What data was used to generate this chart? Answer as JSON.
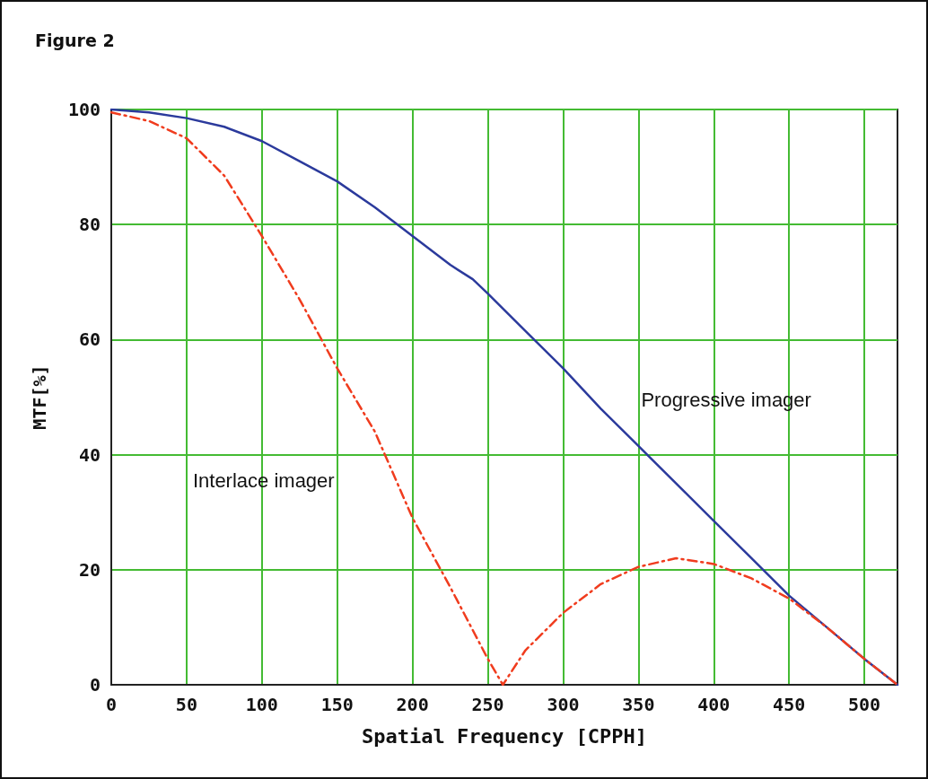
{
  "chart_data": {
    "type": "line",
    "title": "Figure 2",
    "xlabel": "Spatial Frequency [CPPH]",
    "ylabel": "MTF[%]",
    "xlim": [
      0,
      522
    ],
    "xticks": [
      0,
      50,
      100,
      150,
      200,
      250,
      300,
      350,
      400,
      450,
      500
    ],
    "ylim": [
      0,
      100
    ],
    "yticks": [
      0,
      20,
      40,
      60,
      80,
      100
    ],
    "grid": true,
    "legend": false,
    "marker": "none",
    "series": [
      {
        "name": "Progressive imager",
        "color": "#2b3a9c",
        "line_style": "solid",
        "x": [
          0,
          25,
          50,
          75,
          100,
          125,
          150,
          175,
          200,
          225,
          240,
          250,
          275,
          300,
          325,
          350,
          375,
          400,
          425,
          450,
          475,
          500,
          522
        ],
        "values": [
          100,
          99.5,
          98.5,
          97,
          94.5,
          91,
          87.5,
          83,
          78,
          73,
          70.5,
          68,
          61.5,
          55,
          48,
          41.5,
          35,
          28.5,
          22,
          15.5,
          10,
          4.5,
          0
        ]
      },
      {
        "name": "Interlace imager",
        "color": "#f03c1e",
        "line_style": "dashed",
        "x": [
          0,
          25,
          50,
          75,
          100,
          125,
          150,
          175,
          200,
          225,
          250,
          260,
          275,
          300,
          325,
          350,
          375,
          400,
          425,
          450,
          475,
          500,
          522
        ],
        "values": [
          99.5,
          98,
          95,
          88.5,
          78,
          67,
          55,
          44,
          29,
          17,
          4.5,
          0,
          6,
          12.5,
          17.5,
          20.5,
          22,
          21,
          18.5,
          15,
          10,
          4.5,
          0
        ]
      }
    ]
  }
}
